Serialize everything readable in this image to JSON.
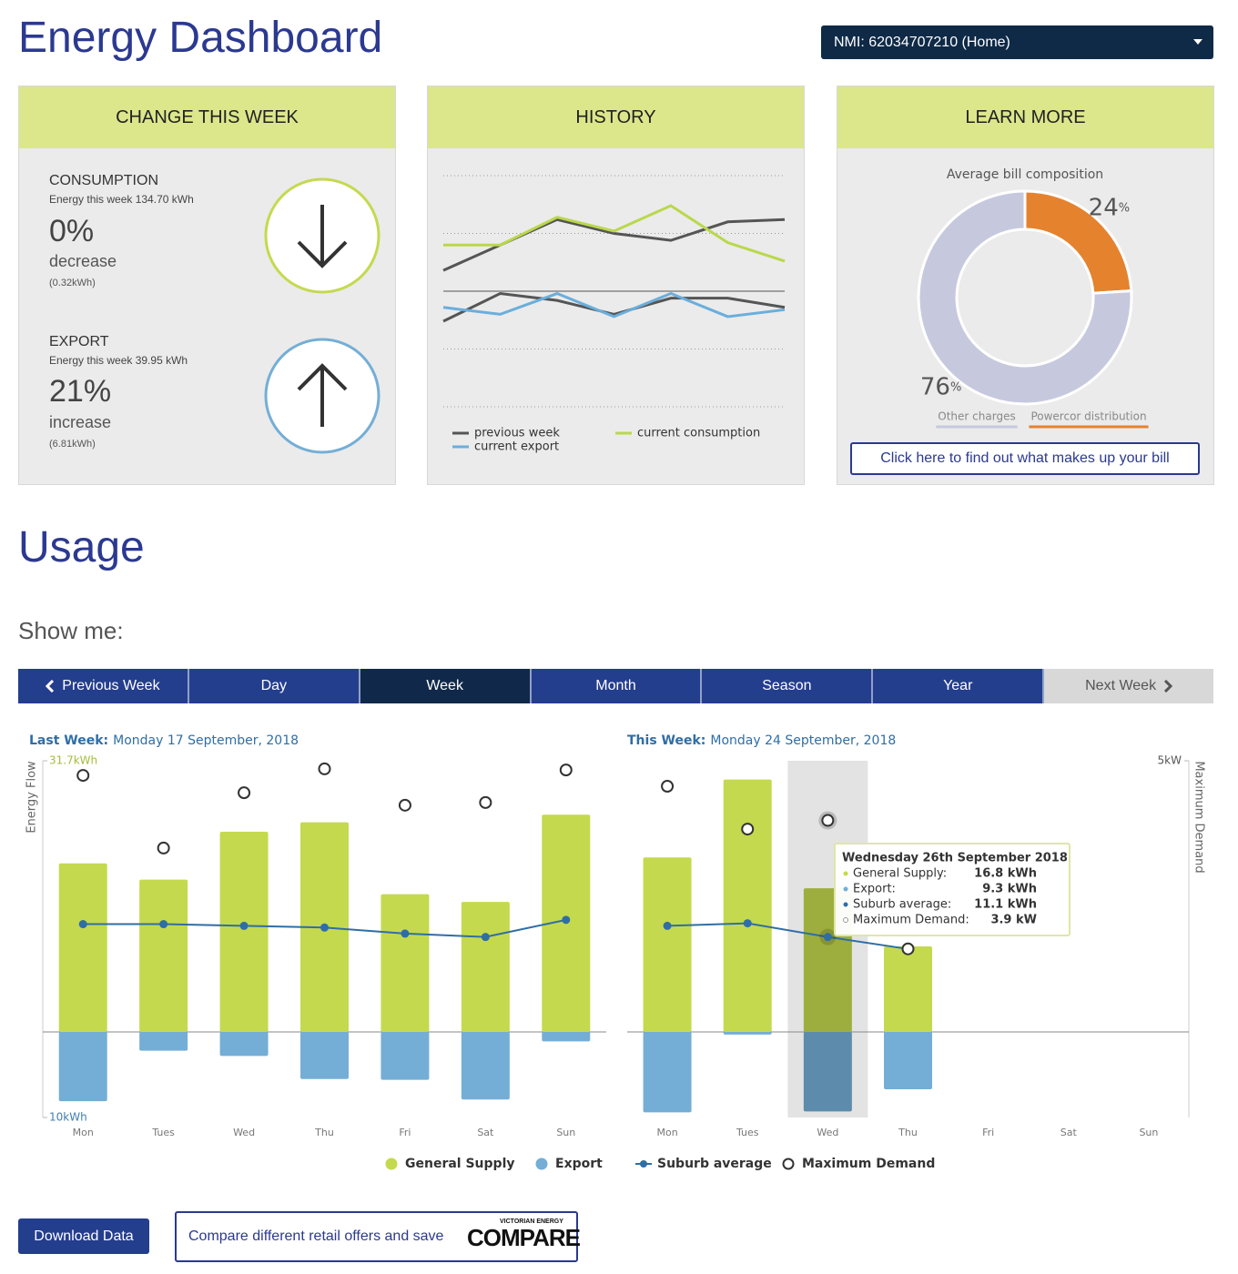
{
  "header": {
    "title": "Energy Dashboard",
    "meter_select": "NMI: 62034707210 (Home)"
  },
  "change_card": {
    "title": "CHANGE THIS WEEK",
    "items": [
      {
        "label": "CONSUMPTION",
        "energy": "Energy this week 134.70 kWh",
        "change": "0%",
        "direction": "decrease",
        "delta": "(0.32kWh)"
      },
      {
        "label": "EXPORT",
        "energy": "Energy this week 39.95 kWh",
        "change": "21%",
        "direction": "increase",
        "delta": "(6.81kWh)"
      }
    ]
  },
  "history_card": {
    "title": "HISTORY"
  },
  "learn_card": {
    "title": "LEARN MORE",
    "button": "Click here to find out what makes up your bill"
  },
  "usage": {
    "title": "Usage",
    "show_me": "Show me:",
    "tabs": [
      "Previous Week",
      "Day",
      "Week",
      "Month",
      "Season",
      "Year",
      "Next Week"
    ],
    "active_tab": 2,
    "download": "Download Data",
    "compare": "Compare different retail offers and save",
    "compare_logo_top": "VICTORIAN ENERGY",
    "compare_logo": "COMPARE"
  },
  "chart_data": [
    {
      "type": "line",
      "ylim": [
        0,
        100
      ],
      "yticks": [
        0,
        25,
        50,
        75,
        100
      ],
      "baseline": 50,
      "series": [
        {
          "name": "previous week",
          "color": "#555555",
          "lines": [
            [
              59,
              70,
              81,
              75,
              72,
              80,
              81
            ],
            [
              37,
              49,
              46,
              40,
              47,
              47,
              43
            ]
          ]
        },
        {
          "name": "current consumption",
          "color": "#b9d84a",
          "lines": [
            [
              70,
              70,
              82,
              76,
              87,
              71,
              63
            ]
          ]
        },
        {
          "name": "current export",
          "color": "#6aaedc",
          "lines": [
            [
              43,
              40,
              49,
              39,
              49,
              39,
              42
            ]
          ]
        }
      ]
    },
    {
      "type": "donut",
      "title": "Average bill composition",
      "categories": [
        "Powercor distribution",
        "Other charges"
      ],
      "values": [
        24,
        76
      ],
      "unit": "%",
      "colors": [
        "#e5822e",
        "#c6c9de"
      ]
    },
    {
      "type": "combo",
      "label": "Last Week:",
      "date": "Monday 17 September, 2018",
      "ylabel": "Energy Flow",
      "categories": [
        "Mon",
        "Tues",
        "Wed",
        "Thu",
        "Fri",
        "Sat",
        "Sun"
      ],
      "ylim": [
        -10,
        31.7
      ],
      "yticks": [
        {
          "value": -10,
          "label": "10kWh"
        },
        {
          "value": 31.7,
          "label": "31.7kWh"
        }
      ],
      "y2lim": [
        -1.58,
        5
      ],
      "series": [
        {
          "name": "General Supply",
          "type": "bar",
          "color": "#c5d94e",
          "values": [
            19.7,
            17.8,
            23.4,
            24.5,
            16.1,
            15.2,
            25.4
          ]
        },
        {
          "name": "Export",
          "type": "bar",
          "color": "#74aed6",
          "values": [
            -8.1,
            -2.2,
            -2.8,
            -5.5,
            -5.6,
            -7.9,
            -1.1
          ]
        },
        {
          "name": "Suburb average",
          "type": "line",
          "color": "#2f6ea5",
          "values": [
            12.6,
            12.6,
            12.4,
            12.2,
            11.5,
            11.1,
            13.1
          ]
        },
        {
          "name": "Maximum Demand",
          "type": "scatter",
          "axis": "y2",
          "color": "#333333",
          "values": [
            4.73,
            3.39,
            4.41,
            4.85,
            4.18,
            4.23,
            4.83
          ]
        }
      ]
    },
    {
      "type": "combo",
      "label": "This Week:",
      "date": "Monday 24 September, 2018",
      "y2label": "Maximum Demand",
      "categories": [
        "Mon",
        "Tues",
        "Wed",
        "Thu",
        "Fri",
        "Sat",
        "Sun"
      ],
      "ylim": [
        -10,
        31.7
      ],
      "y2lim": [
        -1.58,
        5
      ],
      "y2ticks": [
        {
          "value": 5,
          "label": "5kW"
        }
      ],
      "highlight": 2,
      "series": [
        {
          "type": "bar",
          "color": "#c5d94e",
          "values": [
            20.4,
            29.5,
            16.8,
            10.0,
            null,
            null,
            null
          ]
        },
        {
          "type": "bar",
          "color": "#74aed6",
          "values": [
            -9.4,
            -0.3,
            -9.3,
            -6.7,
            null,
            null,
            null
          ]
        },
        {
          "type": "line",
          "color": "#2f6ea5",
          "values": [
            12.4,
            12.7,
            11.1,
            9.7,
            null,
            null,
            null
          ]
        },
        {
          "type": "scatter",
          "axis": "y2",
          "color": "#333333",
          "values": [
            4.53,
            3.74,
            3.9,
            1.53,
            null,
            null,
            null
          ]
        }
      ],
      "tooltip": {
        "title": "Wednesday 26th September 2018",
        "rows": [
          [
            "General Supply:",
            "16.8 kWh"
          ],
          [
            "Export:",
            "9.3 kWh"
          ],
          [
            "Suburb average:",
            "11.1 kWh"
          ],
          [
            "Maximum Demand:",
            "3.9 kW"
          ]
        ]
      }
    }
  ]
}
